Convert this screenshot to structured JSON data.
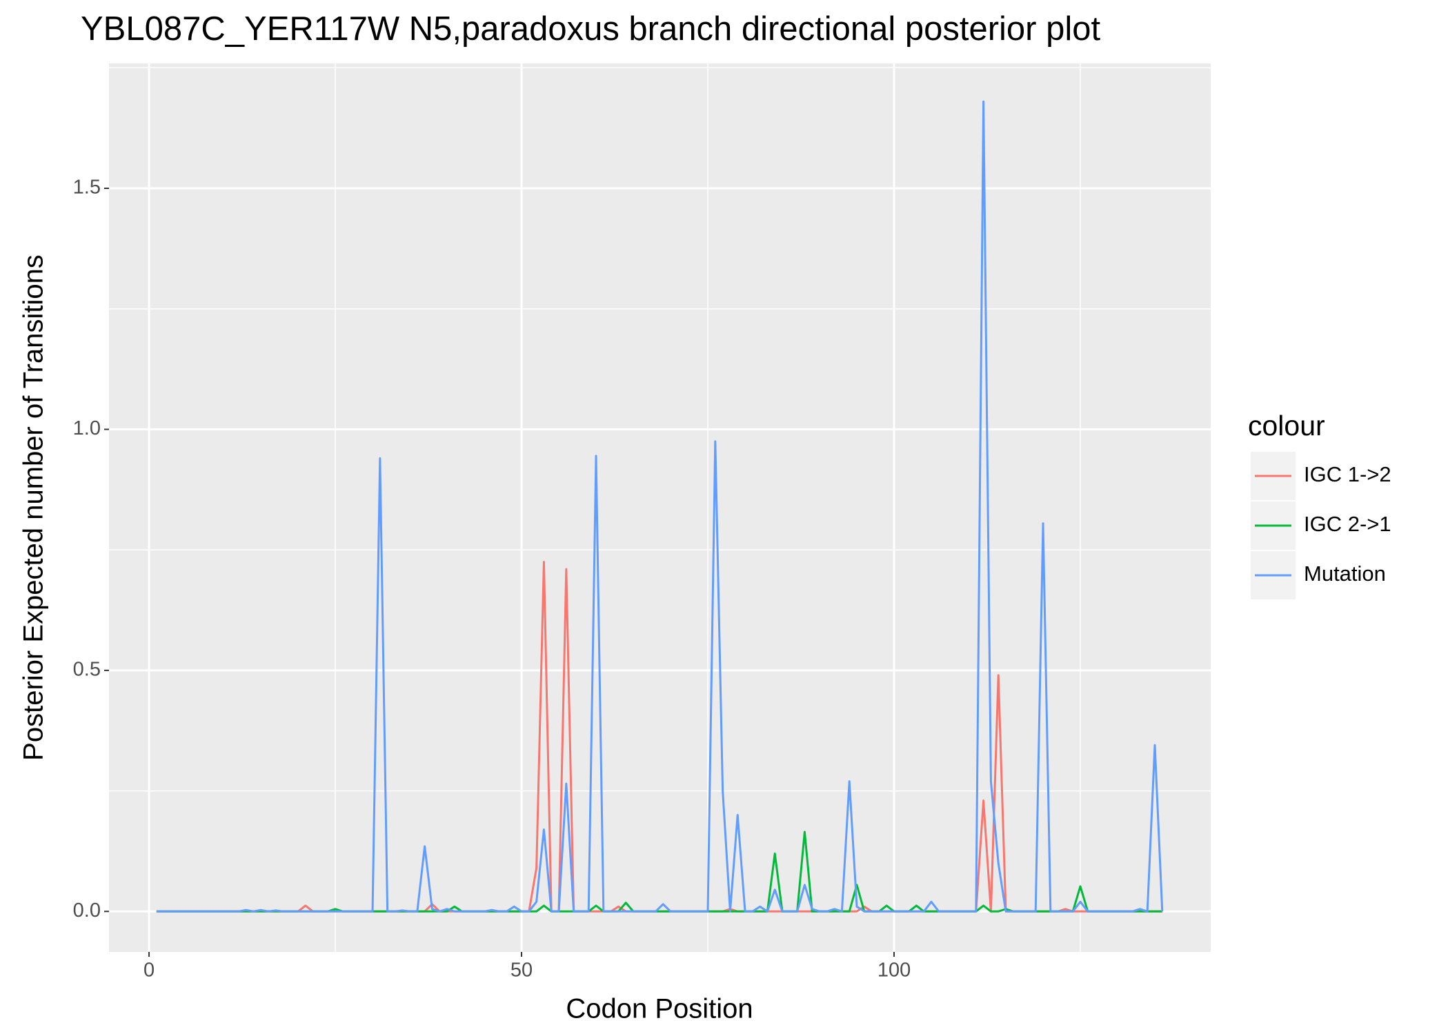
{
  "chart_data": {
    "type": "line",
    "title": "YBL087C_YER117W N5,paradoxus branch directional posterior plot",
    "x_label": "Codon Position",
    "y_label": "Posterior Expected number of Transitions",
    "legend_title": "colour",
    "legend": "right",
    "grid": true,
    "xlim": [
      -5.375,
      142.5
    ],
    "ylim": [
      -0.084,
      1.759
    ],
    "xticks": [
      0,
      50,
      100
    ],
    "yticks": [
      {
        "value": 0,
        "label": "0.0"
      },
      {
        "value": 0.5,
        "label": "0.5"
      },
      {
        "value": 1,
        "label": "1.0"
      },
      {
        "value": 1.5,
        "label": "1.5"
      }
    ],
    "x": [
      1,
      2,
      3,
      4,
      5,
      6,
      7,
      8,
      9,
      10,
      11,
      12,
      13,
      14,
      15,
      16,
      17,
      18,
      19,
      20,
      21,
      22,
      23,
      24,
      25,
      26,
      27,
      28,
      29,
      30,
      31,
      32,
      33,
      34,
      35,
      36,
      37,
      38,
      39,
      40,
      41,
      42,
      43,
      44,
      45,
      46,
      47,
      48,
      49,
      50,
      51,
      52,
      53,
      54,
      55,
      56,
      57,
      58,
      59,
      60,
      61,
      62,
      63,
      64,
      65,
      66,
      67,
      68,
      69,
      70,
      71,
      72,
      73,
      74,
      75,
      76,
      77,
      78,
      79,
      80,
      81,
      82,
      83,
      84,
      85,
      86,
      87,
      88,
      89,
      90,
      91,
      92,
      93,
      94,
      95,
      96,
      97,
      98,
      99,
      100,
      101,
      102,
      103,
      104,
      105,
      106,
      107,
      108,
      109,
      110,
      111,
      112,
      113,
      114,
      115,
      116,
      117,
      118,
      119,
      120,
      121,
      122,
      123,
      124,
      125,
      126,
      127,
      128,
      129,
      130,
      131,
      132,
      133,
      134,
      135,
      136
    ],
    "series": [
      {
        "name": "IGC 1->2",
        "color": "#F8766D",
        "values": [
          0,
          0,
          0,
          0,
          0,
          0,
          0,
          0,
          0,
          0,
          0,
          0,
          0,
          0,
          0,
          0,
          0,
          0,
          0,
          0,
          0.012,
          0,
          0,
          0,
          0,
          0,
          0,
          0,
          0,
          0,
          0,
          0,
          0,
          0,
          0,
          0,
          0,
          0.015,
          0,
          0,
          0,
          0,
          0,
          0,
          0,
          0,
          0,
          0,
          0,
          0,
          0,
          0.09,
          0.725,
          0,
          0,
          0.71,
          0,
          0,
          0,
          0,
          0,
          0,
          0.01,
          0,
          0,
          0,
          0,
          0,
          0,
          0,
          0,
          0,
          0,
          0,
          0,
          0,
          0,
          0.005,
          0,
          0,
          0,
          0,
          0,
          0,
          0,
          0,
          0,
          0,
          0,
          0,
          0,
          0,
          0,
          0,
          0,
          0.01,
          0,
          0,
          0,
          0,
          0,
          0,
          0,
          0,
          0,
          0,
          0,
          0,
          0,
          0,
          0,
          0.23,
          0,
          0.49,
          0,
          0,
          0,
          0,
          0,
          0,
          0,
          0,
          0.005,
          0,
          0,
          0,
          0,
          0,
          0,
          0,
          0,
          0,
          0,
          0,
          0,
          0
        ]
      },
      {
        "name": "IGC 2->1",
        "color": "#00BA38",
        "values": [
          0,
          0,
          0,
          0,
          0,
          0,
          0,
          0,
          0,
          0,
          0,
          0,
          0,
          0,
          0,
          0,
          0,
          0,
          0,
          0,
          0,
          0,
          0,
          0,
          0.005,
          0,
          0,
          0,
          0,
          0,
          0,
          0,
          0,
          0,
          0,
          0,
          0,
          0,
          0,
          0,
          0.01,
          0,
          0,
          0,
          0,
          0,
          0,
          0,
          0,
          0,
          0,
          0,
          0.012,
          0,
          0,
          0,
          0,
          0,
          0,
          0.012,
          0,
          0,
          0,
          0.018,
          0,
          0,
          0,
          0,
          0,
          0,
          0,
          0,
          0,
          0,
          0,
          0,
          0,
          0,
          0,
          0,
          0,
          0,
          0,
          0.12,
          0,
          0,
          0,
          0.165,
          0,
          0,
          0,
          0,
          0,
          0,
          0.055,
          0,
          0,
          0,
          0.012,
          0,
          0,
          0,
          0.012,
          0,
          0,
          0,
          0,
          0,
          0,
          0,
          0,
          0.012,
          0,
          0,
          0.005,
          0,
          0,
          0,
          0,
          0,
          0,
          0,
          0,
          0,
          0.052,
          0,
          0,
          0,
          0,
          0,
          0,
          0,
          0,
          0,
          0,
          0
        ]
      },
      {
        "name": "Mutation",
        "color": "#619CFF",
        "values": [
          0,
          0,
          0,
          0,
          0,
          0,
          0,
          0,
          0,
          0,
          0,
          0,
          0.003,
          0,
          0.003,
          0,
          0.002,
          0,
          0,
          0,
          0,
          0,
          0,
          0,
          0,
          0,
          0,
          0,
          0,
          0,
          0.94,
          0,
          0,
          0.002,
          0,
          0,
          0.135,
          0.005,
          0,
          0.005,
          0,
          0,
          0,
          0,
          0,
          0.003,
          0,
          0,
          0.01,
          0,
          0,
          0.02,
          0.17,
          0,
          0,
          0.265,
          0,
          0,
          0,
          0.945,
          0,
          0,
          0,
          0,
          0,
          0,
          0,
          0,
          0.015,
          0,
          0,
          0,
          0,
          0,
          0,
          0.975,
          0.25,
          0,
          0.2,
          0,
          0,
          0.01,
          0,
          0.045,
          0,
          0,
          0,
          0.055,
          0.005,
          0,
          0,
          0.005,
          0,
          0.27,
          0.01,
          0,
          0,
          0,
          0,
          0,
          0,
          0,
          0,
          0,
          0.02,
          0,
          0,
          0,
          0,
          0,
          0,
          1.68,
          0.27,
          0.1,
          0,
          0,
          0,
          0,
          0,
          0.805,
          0,
          0,
          0,
          0,
          0.02,
          0,
          0,
          0,
          0,
          0,
          0,
          0,
          0.005,
          0,
          0.345,
          0
        ]
      }
    ]
  }
}
